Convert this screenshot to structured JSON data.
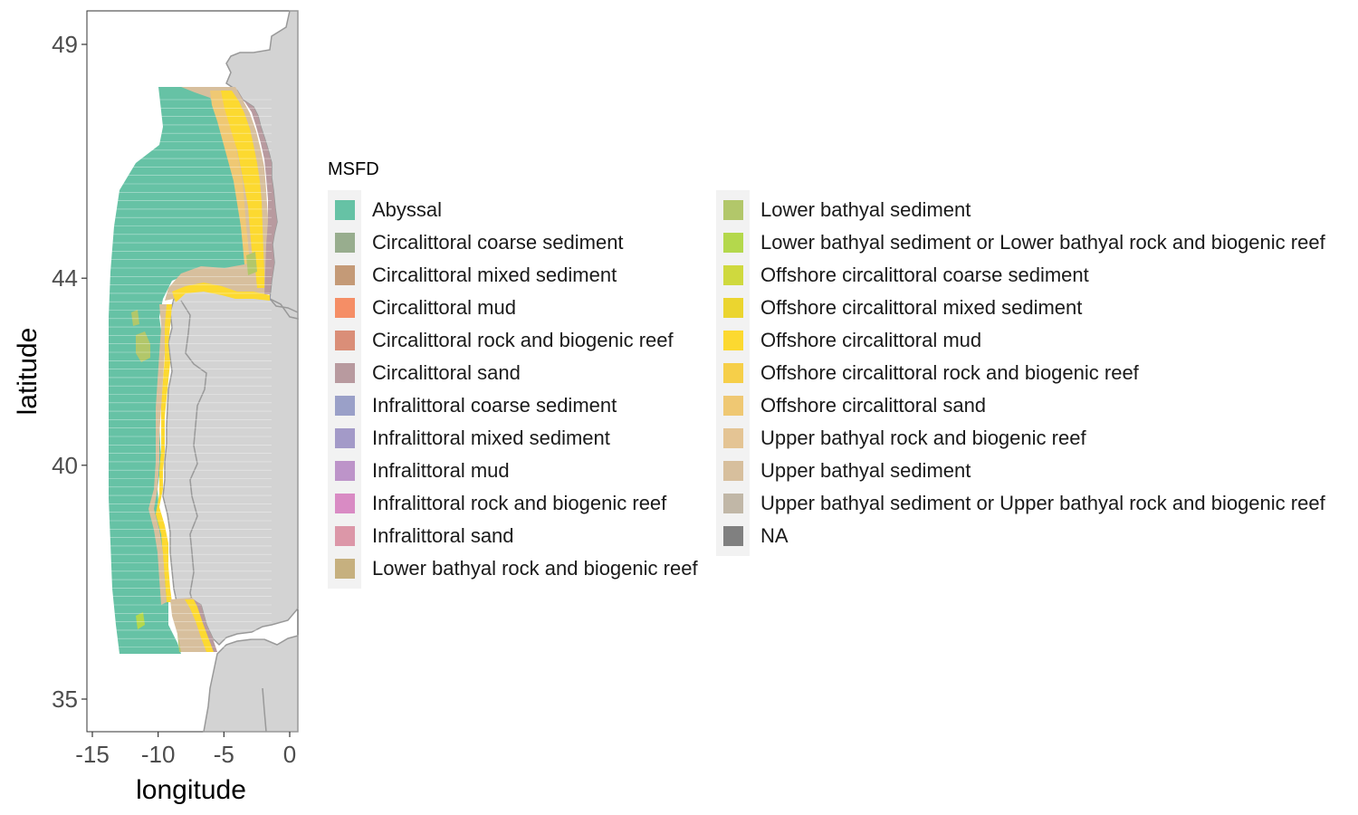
{
  "map": {
    "x_axis_title": "longitude",
    "y_axis_title": "latitude",
    "x_ticks": [
      -15,
      -10,
      -5,
      0
    ],
    "y_ticks": [
      35,
      40,
      44,
      49
    ],
    "x_range": [
      -15.8,
      0.7
    ],
    "y_range": [
      34.2,
      50.2
    ],
    "land_color": "#d3d3d3",
    "border_color": "#999999"
  },
  "legend": {
    "title": "MSFD",
    "items": [
      {
        "label": "Abyssal",
        "color": "#66c2a5"
      },
      {
        "label": "Circalittoral coarse sediment",
        "color": "#98ad8e"
      },
      {
        "label": "Circalittoral mixed sediment",
        "color": "#c49a77"
      },
      {
        "label": "Circalittoral mud",
        "color": "#f58e66"
      },
      {
        "label": "Circalittoral rock and biogenic reef",
        "color": "#da8e78"
      },
      {
        "label": "Circalittoral sand",
        "color": "#b89a9f"
      },
      {
        "label": "Infralittoral coarse sediment",
        "color": "#9aa0c8"
      },
      {
        "label": "Infralittoral mixed sediment",
        "color": "#a39ac8"
      },
      {
        "label": "Infralittoral mud",
        "color": "#bd94c9"
      },
      {
        "label": "Infralittoral rock and biogenic reef",
        "color": "#d98bc4"
      },
      {
        "label": "Infralittoral sand",
        "color": "#dc97a8"
      },
      {
        "label": "Lower bathyal rock and biogenic reef",
        "color": "#c6b07f"
      },
      {
        "label": "Lower bathyal sediment",
        "color": "#b2c76a"
      },
      {
        "label": "Lower bathyal sediment or Lower bathyal rock and biogenic reef",
        "color": "#b4d84c"
      },
      {
        "label": "Offshore circalittoral coarse sediment",
        "color": "#cfd93e"
      },
      {
        "label": "Offshore circalittoral mixed sediment",
        "color": "#ebd52f"
      },
      {
        "label": "Offshore circalittoral mud",
        "color": "#fcd930"
      },
      {
        "label": "Offshore circalittoral rock and biogenic reef",
        "color": "#f6cf49"
      },
      {
        "label": "Offshore circalittoral sand",
        "color": "#efc873"
      },
      {
        "label": "Upper bathyal rock and biogenic reef",
        "color": "#e4c494"
      },
      {
        "label": "Upper bathyal sediment",
        "color": "#d7bf9d"
      },
      {
        "label": "Upper bathyal sediment or Upper bathyal rock and biogenic reef",
        "color": "#c1b7a7"
      },
      {
        "label": "NA",
        "color": "#808080"
      }
    ]
  }
}
